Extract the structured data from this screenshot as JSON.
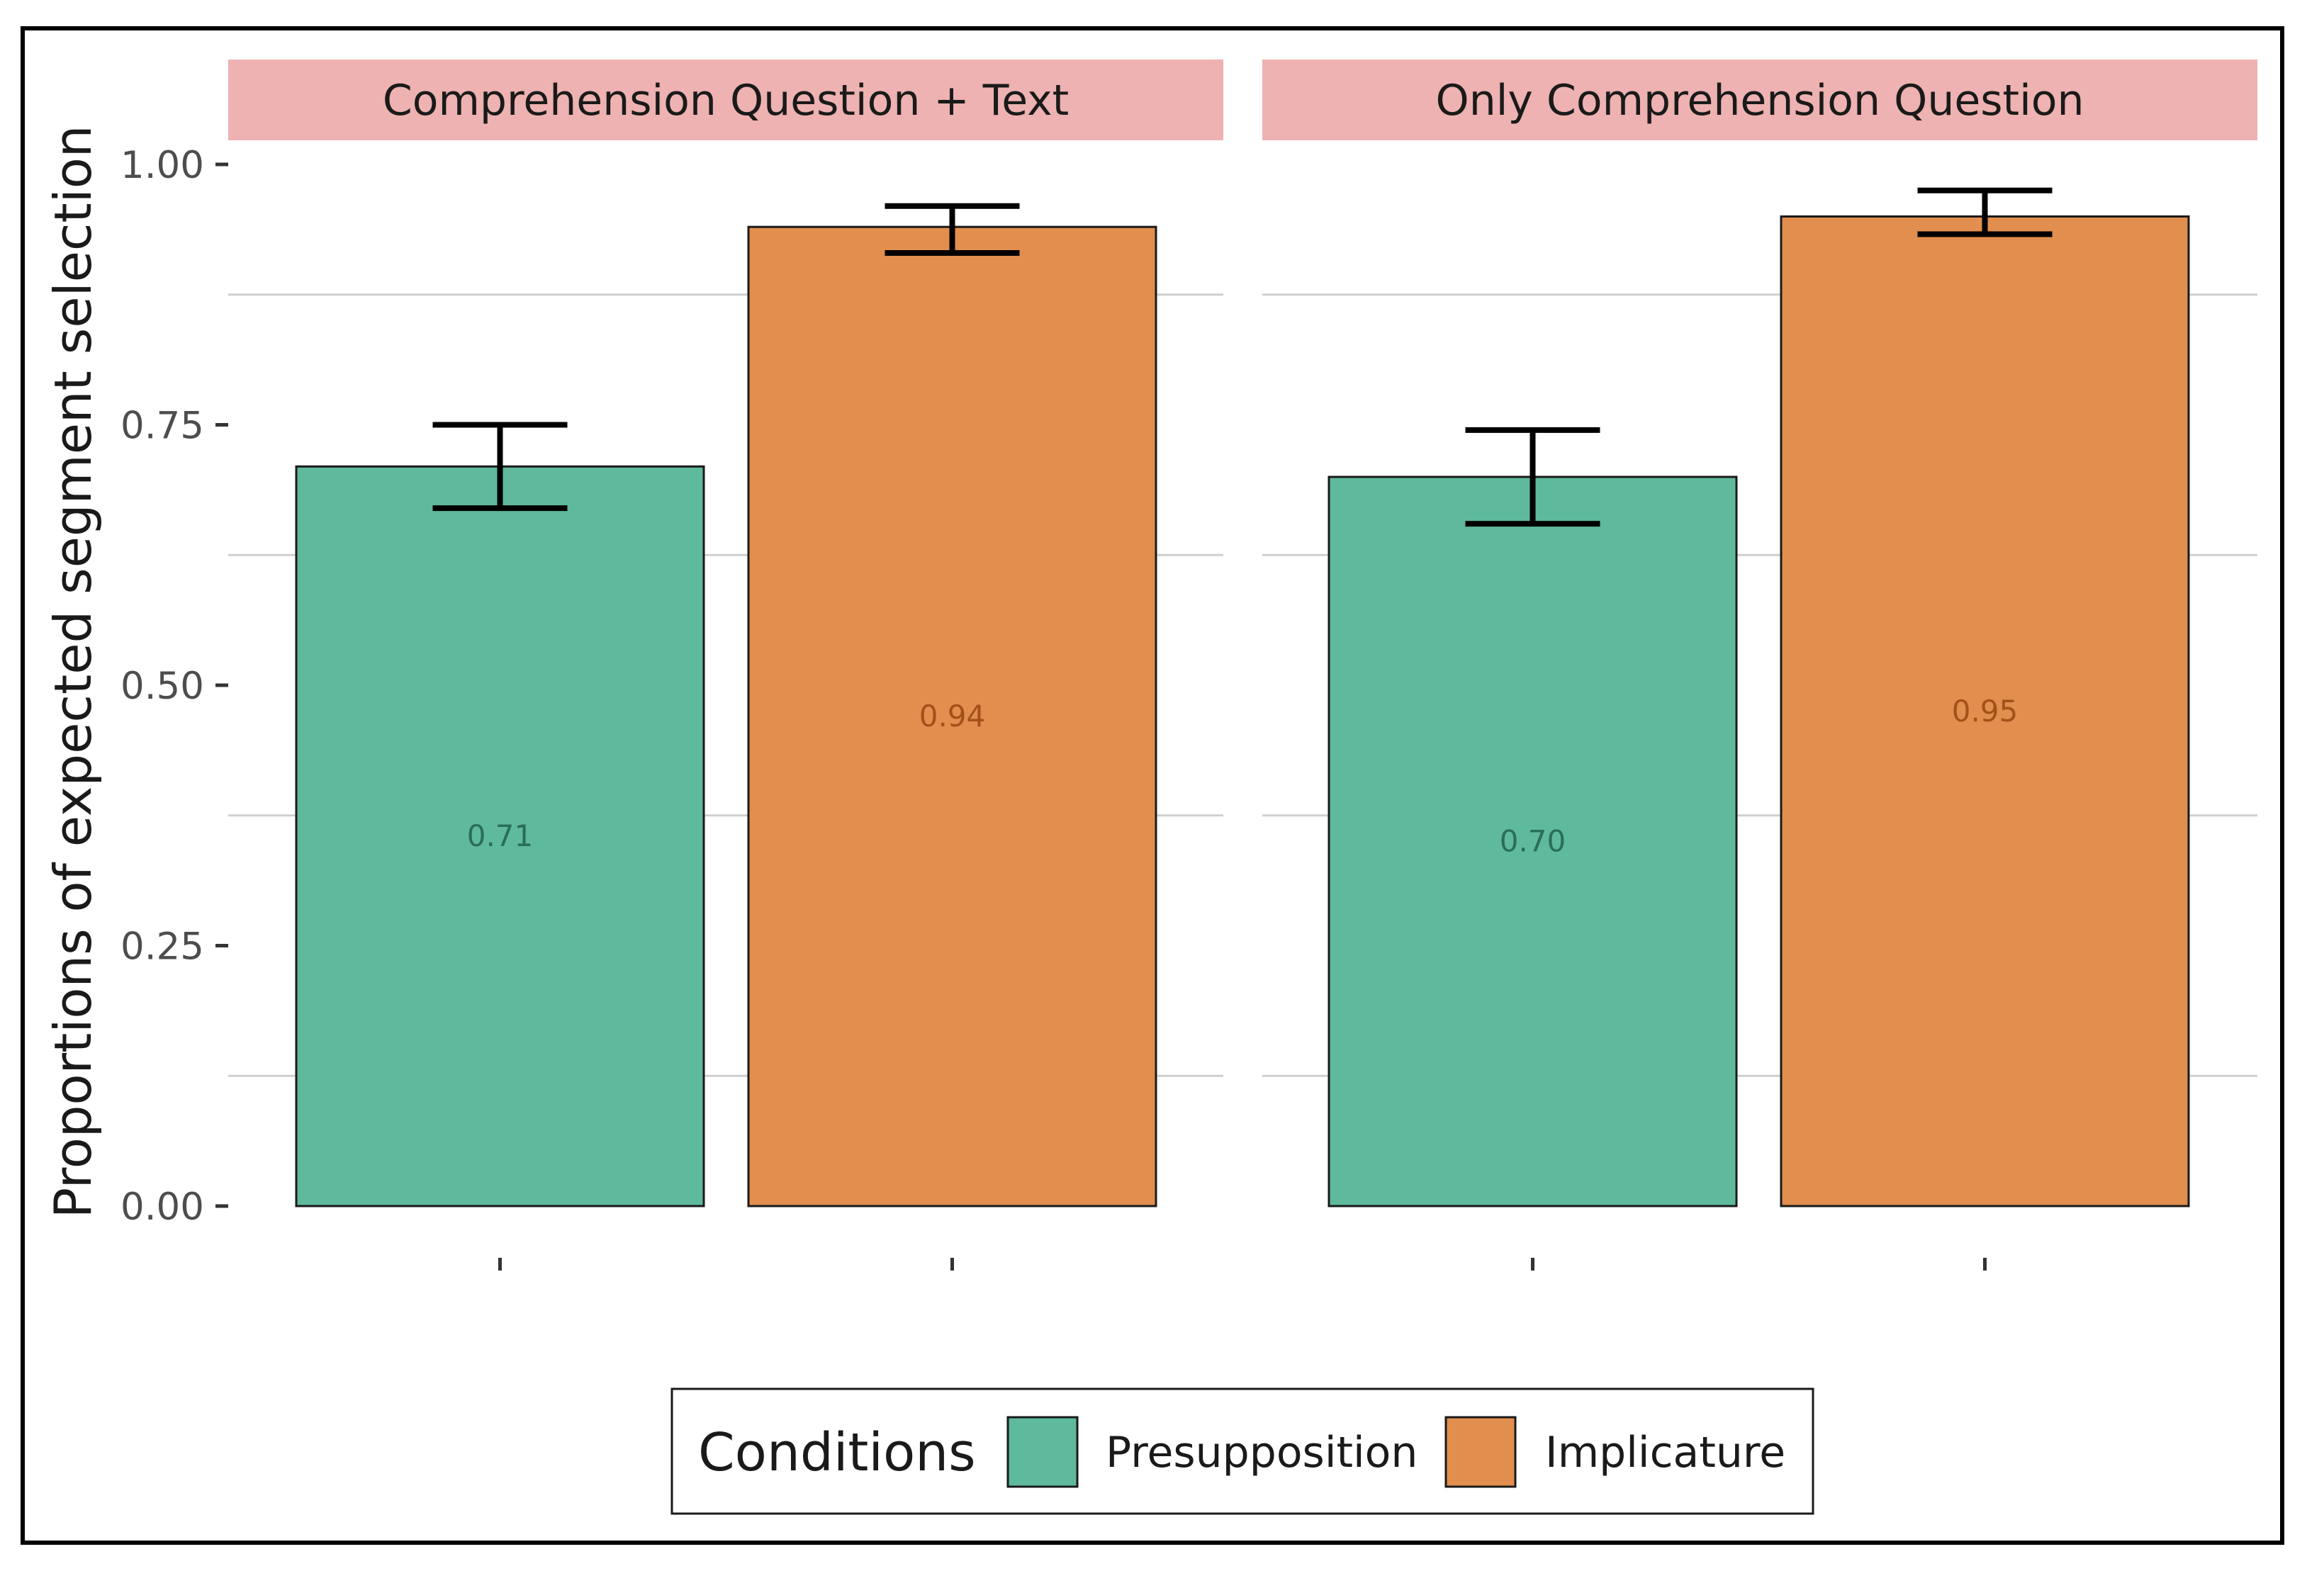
{
  "chart_data": {
    "type": "bar",
    "ylabel": "Proportions of expected segment selection",
    "xlabel": "",
    "ylim": [
      0,
      1.05
    ],
    "yticks": [
      0.0,
      0.25,
      0.5,
      0.75,
      1.0
    ],
    "ytick_labels": [
      "0.00",
      "0.25",
      "0.50",
      "0.75",
      "1.00"
    ],
    "minor_gridlines": [
      0.125,
      0.375,
      0.625,
      0.875
    ],
    "panels": [
      {
        "title": "Comprehension Question + Text",
        "bars": [
          {
            "condition": "Presupposition",
            "value": 0.71,
            "label": "0.71",
            "err_low": 0.67,
            "err_high": 0.75
          },
          {
            "condition": "Implicature",
            "value": 0.94,
            "label": "0.94",
            "err_low": 0.915,
            "err_high": 0.96
          }
        ]
      },
      {
        "title": "Only Comprehension Question",
        "bars": [
          {
            "condition": "Presupposition",
            "value": 0.7,
            "label": "0.70",
            "err_low": 0.655,
            "err_high": 0.745
          },
          {
            "condition": "Implicature",
            "value": 0.95,
            "label": "0.95",
            "err_low": 0.933,
            "err_high": 0.975
          }
        ]
      }
    ],
    "legend": {
      "title": "Conditions",
      "position": "bottom",
      "items": [
        {
          "name": "Presupposition",
          "color": "#5fb99d"
        },
        {
          "name": "Implicature",
          "color": "#e28e4e"
        }
      ]
    }
  },
  "colors": {
    "strip_background": "#edb2b1",
    "presupposition_fill": "#5fb99d",
    "implicature_fill": "#e28e4e",
    "presupposition_label": "#2a6e58",
    "implicature_label": "#a4501a",
    "gridline": "#cfcfcf"
  }
}
